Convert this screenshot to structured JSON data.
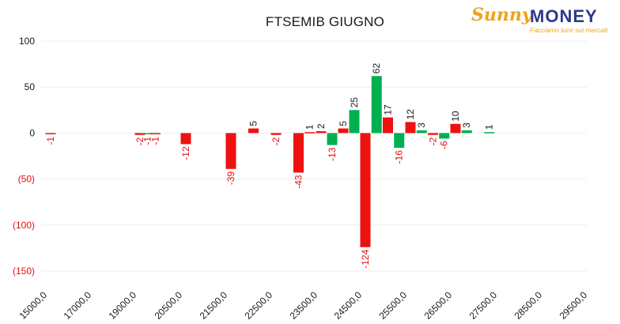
{
  "chart_data": {
    "type": "bar",
    "title": "FTSEMIB GIUGNO",
    "xlabel": "",
    "ylabel": "",
    "ylim": [
      -150,
      100
    ],
    "y_ticks": [
      100,
      50,
      0,
      -50,
      -100,
      -150
    ],
    "y_tick_labels": [
      "100",
      "50",
      "0",
      "(50)",
      "(100)",
      "(150)"
    ],
    "x_tick_labels": [
      "15000,0",
      "17000,0",
      "19000,0",
      "20500,0",
      "21500,0",
      "22500,0",
      "23500,0",
      "24500,0",
      "25500,0",
      "26500,0",
      "27500,0",
      "28500,0",
      "29500,0"
    ],
    "grid": true,
    "legend": "none",
    "colors": {
      "red": "#ee1111",
      "green": "#00b050",
      "negative_label": "#e01010",
      "label": "#1a1a1a",
      "grid": "#eeeeee"
    },
    "bars": [
      {
        "strike": 15000,
        "value": -1,
        "color": "red"
      },
      {
        "strike": 19000,
        "value": -2,
        "color": "red"
      },
      {
        "strike": 19250,
        "value": -1,
        "color": "green"
      },
      {
        "strike": 19500,
        "value": -1,
        "color": "red"
      },
      {
        "strike": 20500,
        "value": -12,
        "color": "red"
      },
      {
        "strike": 21500,
        "value": -39,
        "color": "red"
      },
      {
        "strike": 22000,
        "value": 5,
        "color": "red"
      },
      {
        "strike": 22500,
        "value": -2,
        "color": "red"
      },
      {
        "strike": 23000,
        "value": -43,
        "color": "red"
      },
      {
        "strike": 23250,
        "value": 1,
        "color": "red"
      },
      {
        "strike": 23500,
        "value": 2,
        "color": "red"
      },
      {
        "strike": 23750,
        "value": -13,
        "color": "green"
      },
      {
        "strike": 24000,
        "value": 5,
        "color": "red"
      },
      {
        "strike": 24250,
        "value": 25,
        "color": "green"
      },
      {
        "strike": 24500,
        "value": -124,
        "color": "red"
      },
      {
        "strike": 24750,
        "value": 62,
        "color": "green"
      },
      {
        "strike": 25000,
        "value": 17,
        "color": "red"
      },
      {
        "strike": 25250,
        "value": -16,
        "color": "green"
      },
      {
        "strike": 25500,
        "value": 12,
        "color": "red"
      },
      {
        "strike": 25750,
        "value": 3,
        "color": "green"
      },
      {
        "strike": 26000,
        "value": -2,
        "color": "red"
      },
      {
        "strike": 26250,
        "value": -6,
        "color": "green"
      },
      {
        "strike": 26500,
        "value": 10,
        "color": "red"
      },
      {
        "strike": 26750,
        "value": 3,
        "color": "green"
      },
      {
        "strike": 27250,
        "value": 1,
        "color": "green"
      }
    ]
  },
  "logo": {
    "sunny": "Sunny",
    "money": "MONEY",
    "tagline": "Facciamo luce sui mercati"
  }
}
